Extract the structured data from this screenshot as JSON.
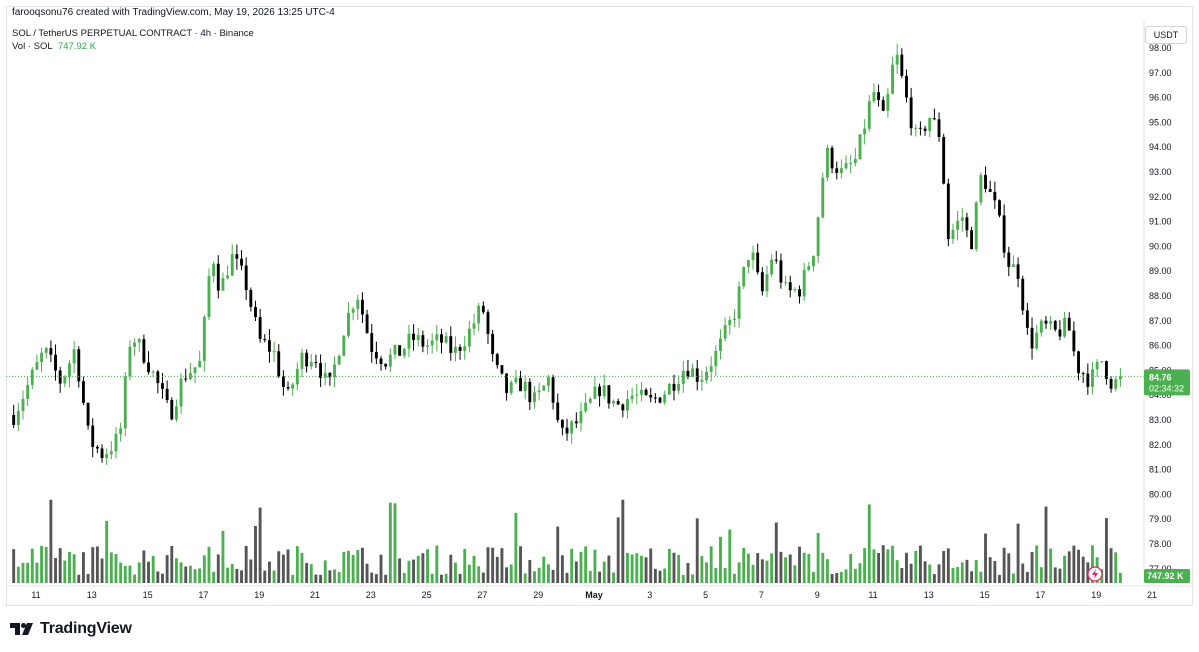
{
  "header": {
    "creator": "farooqsonu76 created with TradingView.com, May 19, 2026 13:25 UTC-4",
    "symbol": "SOL / TetherUS PERPETUAL CONTRACT · 4h · Binance",
    "vol_label": "Vol · SOL",
    "vol_value": "747.92 K",
    "currency": "USDT"
  },
  "brand": {
    "name": "TradingView"
  },
  "colors": {
    "up": "#4caf50",
    "down": "#000000",
    "vol_up": "#4caf50",
    "vol_down": "#555555"
  },
  "chart_data": {
    "type": "candlestick",
    "ylim": [
      77,
      98
    ],
    "y_ticks": [
      "98.00",
      "97.00",
      "96.00",
      "95.00",
      "94.00",
      "93.00",
      "92.00",
      "91.00",
      "90.00",
      "89.00",
      "88.00",
      "87.00",
      "86.00",
      "85.00",
      "84.00",
      "83.00",
      "82.00",
      "81.00",
      "80.00",
      "79.00",
      "78.00",
      "77.00"
    ],
    "x_ticks": [
      {
        "label": "11",
        "day": 0
      },
      {
        "label": "13",
        "day": 2
      },
      {
        "label": "15",
        "day": 4
      },
      {
        "label": "17",
        "day": 6
      },
      {
        "label": "19",
        "day": 8
      },
      {
        "label": "21",
        "day": 10
      },
      {
        "label": "23",
        "day": 12
      },
      {
        "label": "25",
        "day": 14
      },
      {
        "label": "27",
        "day": 16
      },
      {
        "label": "29",
        "day": 18
      },
      {
        "label": "May",
        "day": 20
      },
      {
        "label": "3",
        "day": 22
      },
      {
        "label": "5",
        "day": 24
      },
      {
        "label": "7",
        "day": 26
      },
      {
        "label": "9",
        "day": 28
      },
      {
        "label": "11",
        "day": 30
      },
      {
        "label": "13",
        "day": 32
      },
      {
        "label": "15",
        "day": 34
      },
      {
        "label": "17",
        "day": 36
      },
      {
        "label": "19",
        "day": 38
      },
      {
        "label": "21",
        "day": 40
      }
    ],
    "last_price": "84.76",
    "countdown": "02:34:32",
    "volume_label": "747.92 K",
    "ohlc_keypoints": [
      {
        "day": -0.8,
        "close": 83.2
      },
      {
        "day": 0.3,
        "close": 85.8
      },
      {
        "day": 0.9,
        "close": 84.5
      },
      {
        "day": 1.4,
        "close": 85.9
      },
      {
        "day": 1.9,
        "close": 82.2
      },
      {
        "day": 2.4,
        "close": 81.6
      },
      {
        "day": 3.0,
        "close": 82.3
      },
      {
        "day": 3.4,
        "close": 86.5
      },
      {
        "day": 3.9,
        "close": 85.6
      },
      {
        "day": 4.3,
        "close": 84.6
      },
      {
        "day": 4.8,
        "close": 83.2
      },
      {
        "day": 5.3,
        "close": 84.8
      },
      {
        "day": 5.9,
        "close": 85.3
      },
      {
        "day": 6.3,
        "close": 89.9
      },
      {
        "day": 6.6,
        "close": 88.2
      },
      {
        "day": 7.0,
        "close": 89.6
      },
      {
        "day": 7.5,
        "close": 88.6
      },
      {
        "day": 8.0,
        "close": 86.2
      },
      {
        "day": 8.5,
        "close": 85.8
      },
      {
        "day": 9.0,
        "close": 83.8
      },
      {
        "day": 9.5,
        "close": 85.5
      },
      {
        "day": 10.0,
        "close": 85.6
      },
      {
        "day": 10.5,
        "close": 84.2
      },
      {
        "day": 11.0,
        "close": 86.6
      },
      {
        "day": 11.5,
        "close": 88.2
      },
      {
        "day": 12.0,
        "close": 86.0
      },
      {
        "day": 12.5,
        "close": 85.4
      },
      {
        "day": 13.0,
        "close": 85.7
      },
      {
        "day": 13.5,
        "close": 86.3
      },
      {
        "day": 14.0,
        "close": 86.0
      },
      {
        "day": 14.5,
        "close": 86.2
      },
      {
        "day": 15.0,
        "close": 85.7
      },
      {
        "day": 15.5,
        "close": 86.5
      },
      {
        "day": 16.0,
        "close": 87.6
      },
      {
        "day": 16.4,
        "close": 85.2
      },
      {
        "day": 16.9,
        "close": 84.1
      },
      {
        "day": 17.4,
        "close": 84.5
      },
      {
        "day": 17.9,
        "close": 83.7
      },
      {
        "day": 18.4,
        "close": 84.7
      },
      {
        "day": 18.8,
        "close": 82.3
      },
      {
        "day": 19.5,
        "close": 83.0
      },
      {
        "day": 20.2,
        "close": 84.3
      },
      {
        "day": 20.8,
        "close": 83.6
      },
      {
        "day": 21.4,
        "close": 84.0
      },
      {
        "day": 22.0,
        "close": 83.7
      },
      {
        "day": 22.6,
        "close": 84.2
      },
      {
        "day": 23.3,
        "close": 85.2
      },
      {
        "day": 23.8,
        "close": 84.7
      },
      {
        "day": 24.4,
        "close": 85.7
      },
      {
        "day": 25.0,
        "close": 87.2
      },
      {
        "day": 25.6,
        "close": 90.0
      },
      {
        "day": 26.0,
        "close": 88.0
      },
      {
        "day": 26.4,
        "close": 89.7
      },
      {
        "day": 26.9,
        "close": 88.1
      },
      {
        "day": 27.4,
        "close": 88.3
      },
      {
        "day": 27.9,
        "close": 90.0
      },
      {
        "day": 28.3,
        "close": 93.8
      },
      {
        "day": 28.9,
        "close": 92.9
      },
      {
        "day": 29.4,
        "close": 93.5
      },
      {
        "day": 30.0,
        "close": 96.3
      },
      {
        "day": 30.4,
        "close": 95.0
      },
      {
        "day": 30.8,
        "close": 97.9
      },
      {
        "day": 31.2,
        "close": 95.9
      },
      {
        "day": 31.6,
        "close": 94.1
      },
      {
        "day": 32.0,
        "close": 95.3
      },
      {
        "day": 32.4,
        "close": 94.5
      },
      {
        "day": 32.7,
        "close": 90.4
      },
      {
        "day": 33.2,
        "close": 91.2
      },
      {
        "day": 33.5,
        "close": 90.0
      },
      {
        "day": 33.9,
        "close": 93.0
      },
      {
        "day": 34.4,
        "close": 91.5
      },
      {
        "day": 34.9,
        "close": 89.2
      },
      {
        "day": 35.2,
        "close": 89.0
      },
      {
        "day": 35.6,
        "close": 86.0
      },
      {
        "day": 36.1,
        "close": 86.8
      },
      {
        "day": 36.5,
        "close": 86.5
      },
      {
        "day": 37.0,
        "close": 86.8
      },
      {
        "day": 37.3,
        "close": 85.2
      },
      {
        "day": 37.8,
        "close": 84.6
      },
      {
        "day": 38.2,
        "close": 85.4
      },
      {
        "day": 38.6,
        "close": 84.4
      },
      {
        "day": 38.9,
        "close": 84.76
      }
    ]
  }
}
